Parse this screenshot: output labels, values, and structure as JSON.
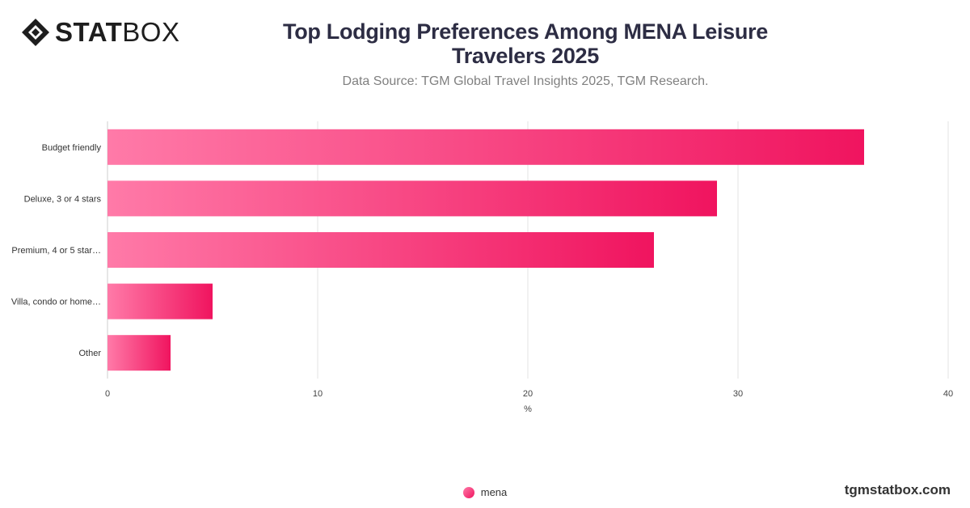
{
  "logo": {
    "bold": "STAT",
    "light": "BOX",
    "icon": "statbox-diamond-icon"
  },
  "title_lines": [
    "Top Lodging Preferences Among MENA Leisure",
    "Travelers 2025"
  ],
  "subtitle": "Data Source: TGM Global Travel Insights 2025, TGM Research.",
  "brand": "tgmstatbox.com",
  "colors": {
    "bar_start": "#ff7aa8",
    "bar_end": "#f0145f",
    "grid": "#e3e3e3",
    "title": "#2d2d44"
  },
  "chart_data": {
    "type": "bar",
    "orientation": "horizontal",
    "categories": [
      "Budget friendly",
      "Deluxe, 3 or 4 stars",
      "Premium, 4 or 5 star…",
      "Villa, condo or home…",
      "Other"
    ],
    "series": [
      {
        "name": "mena",
        "values": [
          36,
          29,
          26,
          5,
          3
        ]
      }
    ],
    "xlabel": "%",
    "ylabel": "",
    "xlim": [
      0,
      40
    ],
    "xticks": [
      0,
      10,
      20,
      30,
      40
    ],
    "grid": true,
    "legend": "bottom-center"
  }
}
